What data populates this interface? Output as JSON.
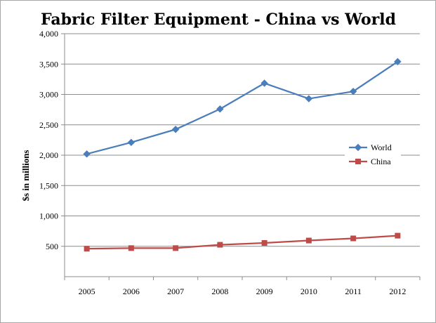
{
  "chart_data": {
    "type": "line",
    "title": "Fabric Filter Equipment - China vs World",
    "xlabel": "",
    "ylabel": "$s in millions",
    "categories": [
      "2005",
      "2006",
      "2007",
      "2008",
      "2009",
      "2010",
      "2011",
      "2012"
    ],
    "ylim": [
      0,
      4000
    ],
    "yticks": [
      500,
      1000,
      1500,
      2000,
      2500,
      3000,
      3500,
      4000
    ],
    "ytick_labels": [
      "500",
      "1,000",
      "1,500",
      "2,000",
      "2,500",
      "3,000",
      "3,500",
      "4,000"
    ],
    "grid": true,
    "legend_position": "right",
    "series": [
      {
        "name": "World",
        "color": "#4a7ebb",
        "marker": "diamond",
        "values": [
          2020,
          2210,
          2425,
          2760,
          3185,
          2930,
          3050,
          3540
        ]
      },
      {
        "name": "China",
        "color": "#be4b48",
        "marker": "square",
        "values": [
          460,
          470,
          470,
          525,
          555,
          595,
          630,
          675
        ]
      }
    ]
  }
}
